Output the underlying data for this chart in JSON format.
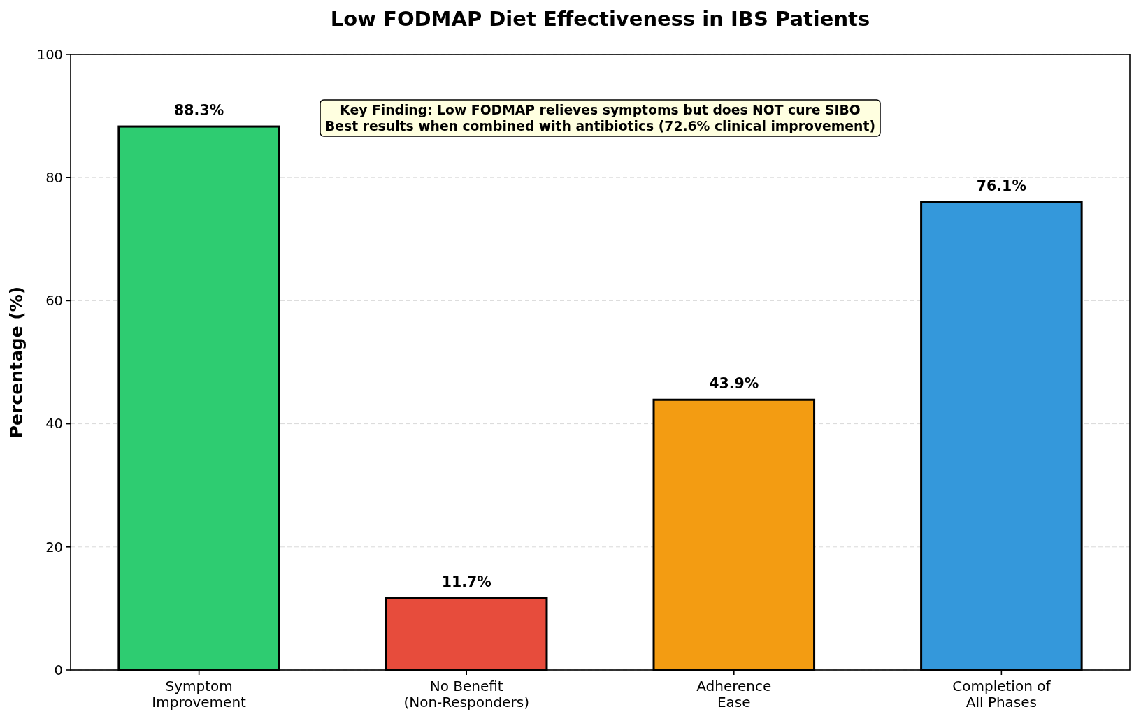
{
  "chart_data": {
    "type": "bar",
    "title": "Low FODMAP Diet Effectiveness in IBS Patients",
    "ylabel": "Percentage (%)",
    "categories": [
      "Symptom\nImprovement",
      "No Benefit\n(Non-Responders)",
      "Adherence\nEase",
      "Completion of\nAll Phases"
    ],
    "values": [
      88.3,
      11.7,
      43.9,
      76.1
    ],
    "colors": [
      "#2ecc71",
      "#e74c3c",
      "#f39c12",
      "#3498db"
    ],
    "value_labels": [
      "88.3%",
      "11.7%",
      "43.9%",
      "76.1%"
    ],
    "ylim": [
      0,
      100
    ],
    "yticks": [
      0,
      20,
      40,
      60,
      80,
      100
    ],
    "grid": "y",
    "annotations": [
      "Key Finding: Low FODMAP relieves symptoms but does NOT cure SIBO\nBest results when combined with antibiotics (72.6% clinical improvement)"
    ]
  }
}
